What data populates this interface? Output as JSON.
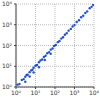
{
  "chart_data": {
    "type": "scatter",
    "log": true,
    "grid": true,
    "color": "#1f4fd0",
    "marker": "o",
    "x": [
      1.2,
      1.5,
      2,
      2.5,
      3,
      3.5,
      4,
      5,
      6,
      7,
      8,
      10,
      12,
      15,
      18,
      22,
      27,
      33,
      40,
      50,
      60,
      75,
      90,
      110,
      140,
      170,
      210,
      260,
      320,
      400,
      500,
      650,
      800,
      1000,
      1300,
      1700,
      2200,
      2800,
      3600,
      4500,
      6000,
      7500,
      9000,
      3,
      5,
      8,
      15,
      30,
      60
    ],
    "y": [
      1.3,
      1.4,
      2.2,
      2.4,
      3.1,
      3.8,
      3.9,
      5.2,
      6.3,
      6.8,
      8.5,
      10.5,
      11.5,
      15.5,
      19,
      21,
      28,
      32,
      42,
      48,
      63,
      72,
      95,
      105,
      145,
      165,
      215,
      250,
      330,
      390,
      520,
      630,
      830,
      980,
      1350,
      1650,
      2300,
      2700,
      3700,
      4400,
      6200,
      7300,
      9200,
      1.8,
      3.2,
      5,
      9,
      20,
      40
    ],
    "xlim": [
      1,
      10000
    ],
    "ylim": [
      1,
      10000
    ],
    "xticks": [
      {
        "value": 1,
        "label": "10⁰"
      },
      {
        "value": 10,
        "label": "10¹"
      },
      {
        "value": 100,
        "label": "10²"
      },
      {
        "value": 1000,
        "label": "10³"
      },
      {
        "value": 10000,
        "label": "10⁴"
      }
    ],
    "yticks": [
      {
        "value": 1,
        "label": "10⁰"
      },
      {
        "value": 10,
        "label": "10¹"
      },
      {
        "value": 100,
        "label": "10²"
      },
      {
        "value": 1000,
        "label": "10³"
      },
      {
        "value": 10000,
        "label": "10⁴"
      }
    ]
  }
}
